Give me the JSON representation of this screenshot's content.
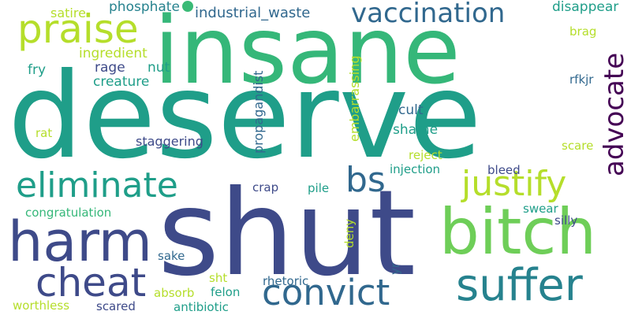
{
  "palette": {
    "dark_purple": "#440154",
    "indigo": "#3e4a89",
    "slate_blue": "#31688e",
    "teal_blue": "#26828e",
    "teal": "#1f9e89",
    "green": "#35b779",
    "light_green": "#6ece58",
    "yellow_green": "#b5de2b",
    "yellow": "#e2e418"
  },
  "words": [
    {
      "text": "deserve",
      "color": "teal"
    },
    {
      "text": "insane",
      "color": "green"
    },
    {
      "text": "shut",
      "color": "indigo"
    },
    {
      "text": "bitch",
      "color": "light_green"
    },
    {
      "text": "harm",
      "color": "indigo"
    },
    {
      "text": "suffer",
      "color": "teal_blue"
    },
    {
      "text": "convict",
      "color": "slate_blue"
    },
    {
      "text": "cheat",
      "color": "indigo"
    },
    {
      "text": "justify",
      "color": "yellow_green"
    },
    {
      "text": "eliminate",
      "color": "teal"
    },
    {
      "text": "praise",
      "color": "yellow_green"
    },
    {
      "text": "vaccination",
      "color": "slate_blue"
    },
    {
      "text": "bs",
      "color": "slate_blue"
    },
    {
      "text": "advocate",
      "color": "dark_purple"
    },
    {
      "text": "industrial_waste",
      "color": "slate_blue"
    },
    {
      "text": "phosphate",
      "color": "teal_blue"
    },
    {
      "text": "satire",
      "color": "yellow_green"
    },
    {
      "text": "disappear",
      "color": "teal"
    },
    {
      "text": "brag",
      "color": "yellow_green"
    },
    {
      "text": "ingredient",
      "color": "yellow_green"
    },
    {
      "text": "fry",
      "color": "teal"
    },
    {
      "text": "rage",
      "color": "indigo"
    },
    {
      "text": "nut",
      "color": "teal"
    },
    {
      "text": "creature",
      "color": "teal"
    },
    {
      "text": "rfkjr",
      "color": "slate_blue"
    },
    {
      "text": "embarrassing",
      "color": "yellow_green"
    },
    {
      "text": "propagandist",
      "color": "slate_blue"
    },
    {
      "text": "cult",
      "color": "slate_blue"
    },
    {
      "text": "shame",
      "color": "teal"
    },
    {
      "text": "rat",
      "color": "yellow_green"
    },
    {
      "text": "staggering",
      "color": "indigo"
    },
    {
      "text": "reject",
      "color": "yellow_green"
    },
    {
      "text": "scare",
      "color": "yellow_green"
    },
    {
      "text": "injection",
      "color": "teal"
    },
    {
      "text": "bleed",
      "color": "indigo"
    },
    {
      "text": "crap",
      "color": "indigo"
    },
    {
      "text": "pile",
      "color": "teal"
    },
    {
      "text": "congratulation",
      "color": "green"
    },
    {
      "text": "swear",
      "color": "teal"
    },
    {
      "text": "silly",
      "color": "indigo"
    },
    {
      "text": "deny",
      "color": "yellow_green"
    },
    {
      "text": "sake",
      "color": "slate_blue"
    },
    {
      "text": "yr",
      "color": "slate_blue"
    },
    {
      "text": "sht",
      "color": "yellow_green"
    },
    {
      "text": "rhetoric",
      "color": "slate_blue"
    },
    {
      "text": "absorb",
      "color": "yellow_green"
    },
    {
      "text": "felon",
      "color": "teal"
    },
    {
      "text": "scared",
      "color": "indigo"
    },
    {
      "text": "antibiotic",
      "color": "teal"
    },
    {
      "text": "worthless",
      "color": "yellow_green"
    }
  ]
}
